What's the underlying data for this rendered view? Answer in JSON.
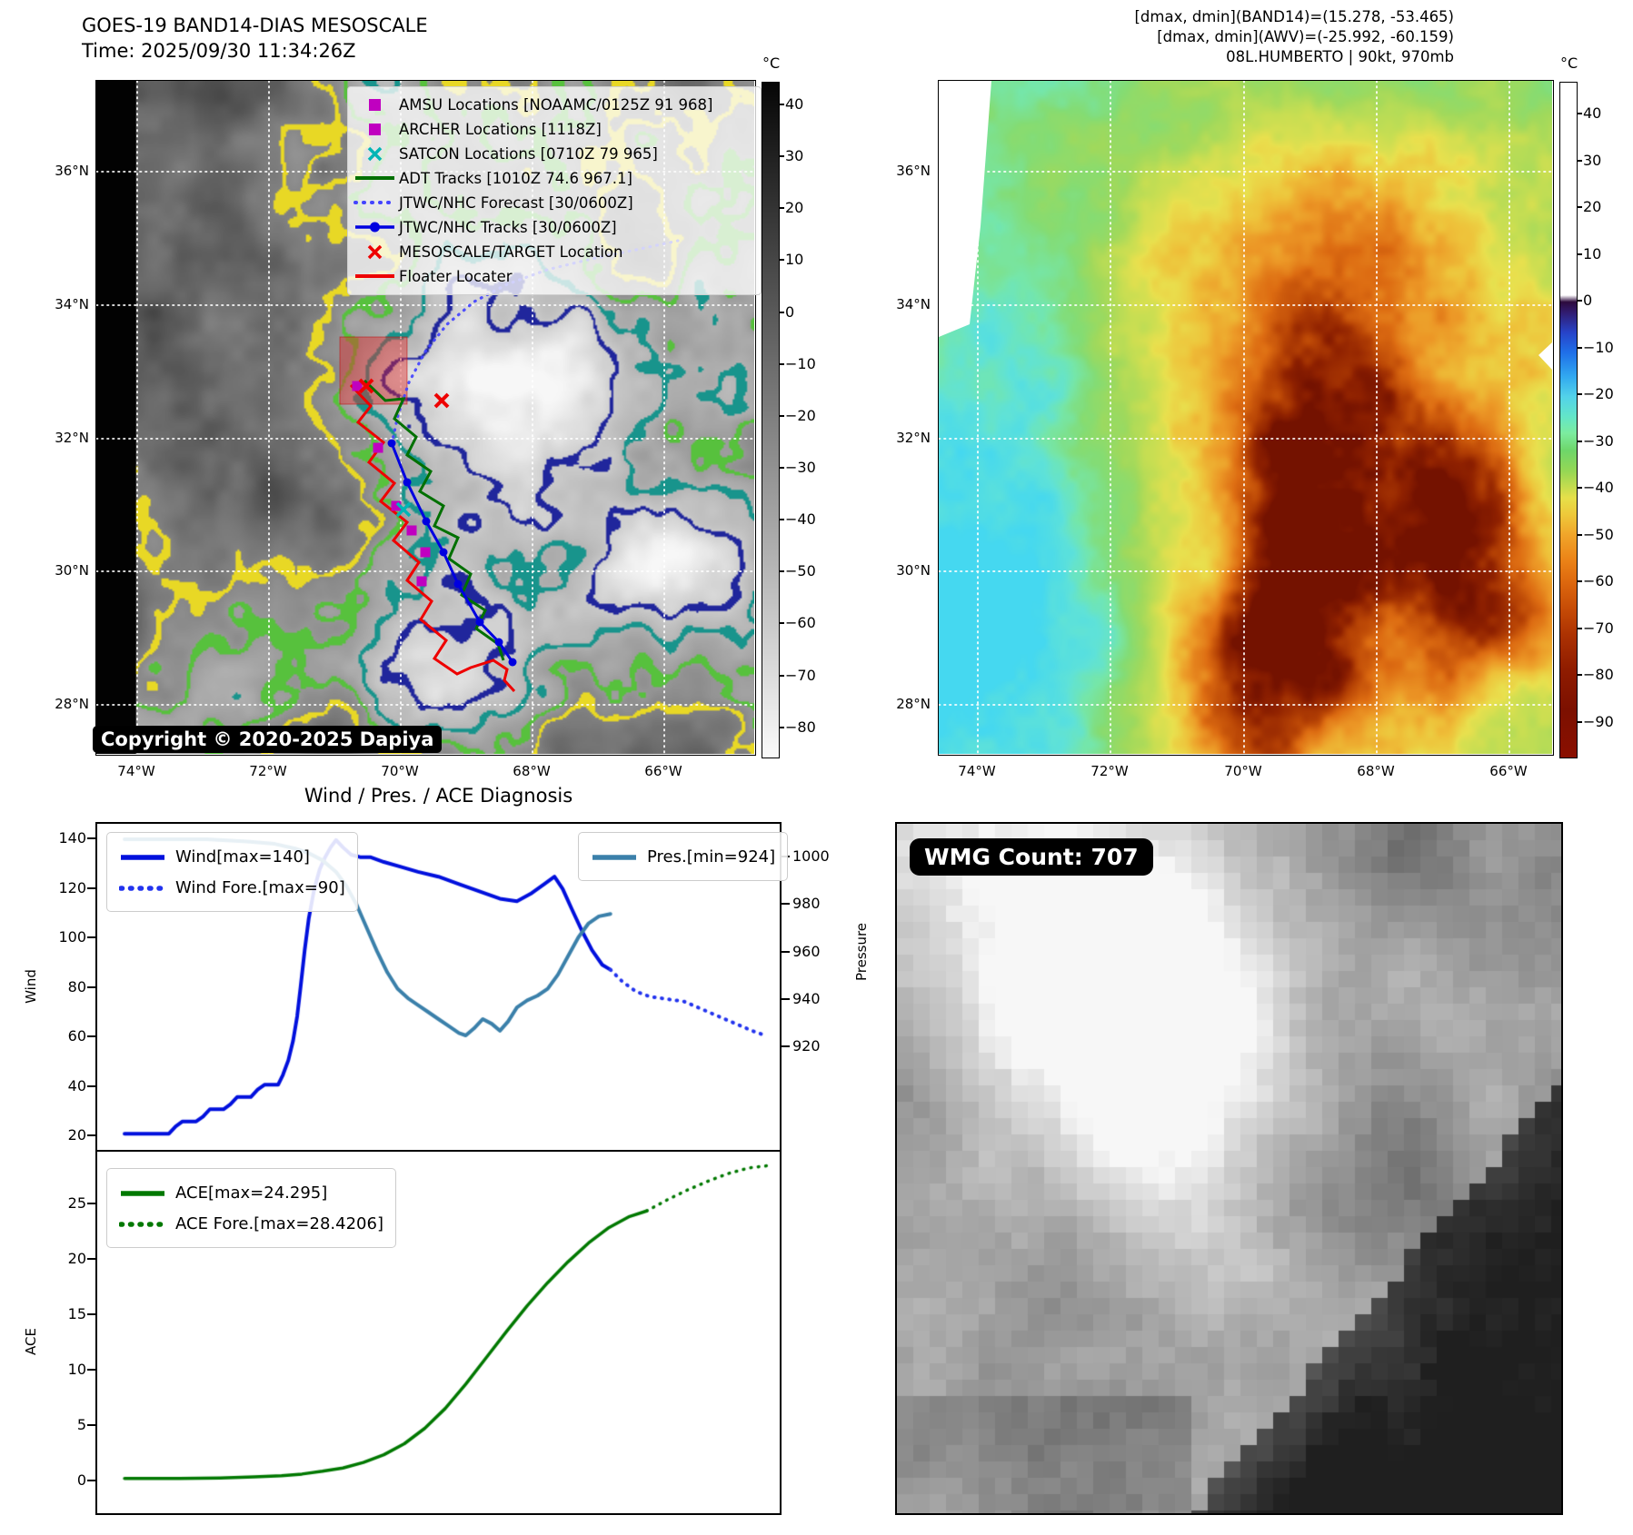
{
  "band14": {
    "title": "GOES-19 BAND14-DIAS MESOSCALE",
    "subtitle": "Time: 2025/09/30 11:34:26Z",
    "copyright": "Copyright © 2020-2025 Dapiya",
    "lat_ticks": [
      "36°N",
      "34°N",
      "32°N",
      "30°N",
      "28°N"
    ],
    "lon_ticks": [
      "74°W",
      "72°W",
      "70°W",
      "68°W",
      "66°W"
    ],
    "legend_items": [
      {
        "label": "AMSU Locations [NOAAMC/0125Z 91 968]",
        "marker": "square",
        "color": "#c000c0"
      },
      {
        "label": "ARCHER Locations [1118Z]",
        "marker": "square",
        "color": "#c000c0"
      },
      {
        "label": "SATCON Locations [0710Z 79 965]",
        "marker": "x",
        "color": "#00b5b5"
      },
      {
        "label": "ADT Tracks [1010Z 74.6 967.1]",
        "marker": "line",
        "color": "#007000"
      },
      {
        "label": "JTWC/NHC Forecast [30/0600Z]",
        "marker": "dotted",
        "color": "#4444ff"
      },
      {
        "label": "JTWC/NHC Tracks [30/0600Z]",
        "marker": "line-dot",
        "color": "#0000e0"
      },
      {
        "label": "MESOSCALE/TARGET Location",
        "marker": "x",
        "color": "#ee0000"
      },
      {
        "label": "Floater Locater",
        "marker": "line",
        "color": "#ee0000"
      }
    ],
    "colorbar": {
      "unit": "°C",
      "ticks": [
        40,
        30,
        20,
        10,
        0,
        -10,
        -20,
        -30,
        -40,
        -50,
        -60,
        -70,
        -80
      ],
      "colors": [
        "#000000",
        "#ffffff"
      ]
    }
  },
  "awv": {
    "info_lines": [
      "[dmax, dmin](BAND14)=(15.278, -53.465)",
      "[dmax, dmin](AWV)=(-25.992, -60.159)",
      "08L.HUMBERTO | 90kt, 970mb"
    ],
    "lat_ticks": [
      "36°N",
      "34°N",
      "32°N",
      "30°N",
      "28°N"
    ],
    "lon_ticks": [
      "74°W",
      "72°W",
      "70°W",
      "68°W",
      "66°W"
    ],
    "colorbar": {
      "unit": "°C",
      "ticks": [
        40,
        30,
        20,
        10,
        0,
        -10,
        -20,
        -30,
        -40,
        -50,
        -60,
        -70,
        -80,
        -90
      ],
      "gradient": [
        [
          0,
          "#ffffff"
        ],
        [
          31.5,
          "#ffffff"
        ],
        [
          32.5,
          "#2d0a3d"
        ],
        [
          34,
          "#311b6e"
        ],
        [
          37,
          "#2743c8"
        ],
        [
          40,
          "#1f6fe8"
        ],
        [
          43.5,
          "#31a8f0"
        ],
        [
          46.5,
          "#52d2ea"
        ],
        [
          49.5,
          "#63e6c8"
        ],
        [
          52,
          "#7cec9e"
        ],
        [
          54.5,
          "#6ed66a"
        ],
        [
          57.5,
          "#94d755"
        ],
        [
          60,
          "#c6dc4e"
        ],
        [
          61.5,
          "#e6e04a"
        ],
        [
          64,
          "#eec93a"
        ],
        [
          67,
          "#f0a52a"
        ],
        [
          70.5,
          "#ec8518"
        ],
        [
          74,
          "#dd680e"
        ],
        [
          78,
          "#c64b06"
        ],
        [
          82,
          "#ab3102"
        ],
        [
          87,
          "#8f1c00"
        ],
        [
          93,
          "#7c1000"
        ],
        [
          100,
          "#8a0f00"
        ]
      ]
    }
  },
  "wmg": {
    "label": "WMG Count: 707"
  },
  "chart_data": [
    {
      "type": "line",
      "title": "Wind / Pres. / ACE Diagnosis",
      "ylabel_left": "Wind",
      "ylabel_right": "Pressure",
      "ylim_left": [
        13.4,
        146.6
      ],
      "ylim_right": [
        875,
        1014.6
      ],
      "yticks_left": [
        140,
        120,
        100,
        80,
        60,
        40,
        20
      ],
      "yticks_right": [
        1000,
        980,
        960,
        940,
        920
      ],
      "grid": false,
      "series": [
        {
          "name": "Wind",
          "legend_label": "Wind[max=140]",
          "legend_box": "wind-legend",
          "axis": "left",
          "style": "solid",
          "color": "#0010dd",
          "width": 4,
          "points": [
            [
              0.04,
              20
            ],
            [
              0.09,
              20
            ],
            [
              0.105,
              20
            ],
            [
              0.115,
              23
            ],
            [
              0.125,
              25
            ],
            [
              0.145,
              25
            ],
            [
              0.155,
              27
            ],
            [
              0.165,
              30
            ],
            [
              0.185,
              30
            ],
            [
              0.195,
              32
            ],
            [
              0.205,
              35
            ],
            [
              0.225,
              35
            ],
            [
              0.235,
              38
            ],
            [
              0.245,
              40
            ],
            [
              0.265,
              40
            ],
            [
              0.272,
              44
            ],
            [
              0.28,
              50
            ],
            [
              0.287,
              58
            ],
            [
              0.293,
              68
            ],
            [
              0.298,
              80
            ],
            [
              0.304,
              95
            ],
            [
              0.31,
              108
            ],
            [
              0.318,
              120
            ],
            [
              0.326,
              128
            ],
            [
              0.334,
              133
            ],
            [
              0.342,
              137
            ],
            [
              0.35,
              140
            ],
            [
              0.36,
              137
            ],
            [
              0.372,
              134
            ],
            [
              0.385,
              133
            ],
            [
              0.4,
              133
            ],
            [
              0.42,
              131
            ],
            [
              0.445,
              129
            ],
            [
              0.47,
              127
            ],
            [
              0.5,
              125
            ],
            [
              0.53,
              122
            ],
            [
              0.56,
              119
            ],
            [
              0.59,
              116
            ],
            [
              0.615,
              115
            ],
            [
              0.635,
              118
            ],
            [
              0.655,
              122
            ],
            [
              0.67,
              125
            ],
            [
              0.682,
              120
            ],
            [
              0.695,
              112
            ],
            [
              0.71,
              103
            ],
            [
              0.725,
              95
            ],
            [
              0.74,
              89
            ],
            [
              0.752,
              87
            ]
          ]
        },
        {
          "name": "Wind Fore.",
          "legend_label": "Wind Fore.[max=90]",
          "legend_box": "wind-legend",
          "axis": "left",
          "style": "dotted",
          "color": "#2233ee",
          "width": 4,
          "points": [
            [
              0.752,
              87
            ],
            [
              0.77,
              82
            ],
            [
              0.79,
              78
            ],
            [
              0.81,
              76
            ],
            [
              0.835,
              75
            ],
            [
              0.86,
              74
            ],
            [
              0.885,
              71
            ],
            [
              0.91,
              68
            ],
            [
              0.935,
              65
            ],
            [
              0.96,
              62
            ],
            [
              0.98,
              60
            ]
          ]
        },
        {
          "name": "Pres.",
          "legend_label": "Pres.[min=924]",
          "legend_box": "pres-legend",
          "axis": "right",
          "style": "solid",
          "color": "#3b80aa",
          "width": 4,
          "points": [
            [
              0.04,
              1008
            ],
            [
              0.1,
              1008
            ],
            [
              0.16,
              1008
            ],
            [
              0.22,
              1007
            ],
            [
              0.26,
              1006
            ],
            [
              0.29,
              1004
            ],
            [
              0.31,
              1002
            ],
            [
              0.33,
              999
            ],
            [
              0.35,
              994
            ],
            [
              0.365,
              988
            ],
            [
              0.38,
              980
            ],
            [
              0.395,
              970
            ],
            [
              0.41,
              960
            ],
            [
              0.425,
              951
            ],
            [
              0.44,
              944
            ],
            [
              0.455,
              940
            ],
            [
              0.47,
              937
            ],
            [
              0.485,
              934
            ],
            [
              0.5,
              931
            ],
            [
              0.515,
              928
            ],
            [
              0.53,
              925
            ],
            [
              0.54,
              924
            ],
            [
              0.552,
              927
            ],
            [
              0.565,
              931
            ],
            [
              0.578,
              929
            ],
            [
              0.59,
              926
            ],
            [
              0.602,
              930
            ],
            [
              0.615,
              936
            ],
            [
              0.63,
              939
            ],
            [
              0.645,
              941
            ],
            [
              0.66,
              944
            ],
            [
              0.675,
              950
            ],
            [
              0.69,
              958
            ],
            [
              0.705,
              966
            ],
            [
              0.72,
              972
            ],
            [
              0.735,
              975
            ],
            [
              0.752,
              976
            ]
          ]
        }
      ]
    },
    {
      "type": "line",
      "ylabel_left": "ACE",
      "ylim_left": [
        -3.1,
        29.67
      ],
      "yticks_left": [
        25,
        20,
        15,
        10,
        5,
        0
      ],
      "grid": false,
      "series": [
        {
          "name": "ACE",
          "legend_label": "ACE[max=24.295]",
          "legend_box": "ace-legend",
          "axis": "left",
          "style": "solid",
          "color": "#007800",
          "width": 3.5,
          "points": [
            [
              0.04,
              0.05
            ],
            [
              0.12,
              0.05
            ],
            [
              0.18,
              0.1
            ],
            [
              0.23,
              0.2
            ],
            [
              0.27,
              0.3
            ],
            [
              0.3,
              0.45
            ],
            [
              0.33,
              0.7
            ],
            [
              0.36,
              1.0
            ],
            [
              0.39,
              1.5
            ],
            [
              0.42,
              2.2
            ],
            [
              0.45,
              3.2
            ],
            [
              0.48,
              4.6
            ],
            [
              0.51,
              6.4
            ],
            [
              0.54,
              8.6
            ],
            [
              0.57,
              11.0
            ],
            [
              0.6,
              13.4
            ],
            [
              0.63,
              15.7
            ],
            [
              0.66,
              17.8
            ],
            [
              0.69,
              19.7
            ],
            [
              0.72,
              21.4
            ],
            [
              0.75,
              22.8
            ],
            [
              0.78,
              23.8
            ],
            [
              0.805,
              24.295
            ]
          ]
        },
        {
          "name": "ACE Fore.",
          "legend_label": "ACE Fore.[max=28.4206]",
          "legend_box": "ace-legend",
          "axis": "left",
          "style": "dotted",
          "color": "#007800",
          "width": 3.5,
          "points": [
            [
              0.805,
              24.295
            ],
            [
              0.835,
              25.3
            ],
            [
              0.865,
              26.2
            ],
            [
              0.895,
              27.0
            ],
            [
              0.925,
              27.7
            ],
            [
              0.955,
              28.2
            ],
            [
              0.985,
              28.4206
            ]
          ]
        }
      ]
    }
  ]
}
